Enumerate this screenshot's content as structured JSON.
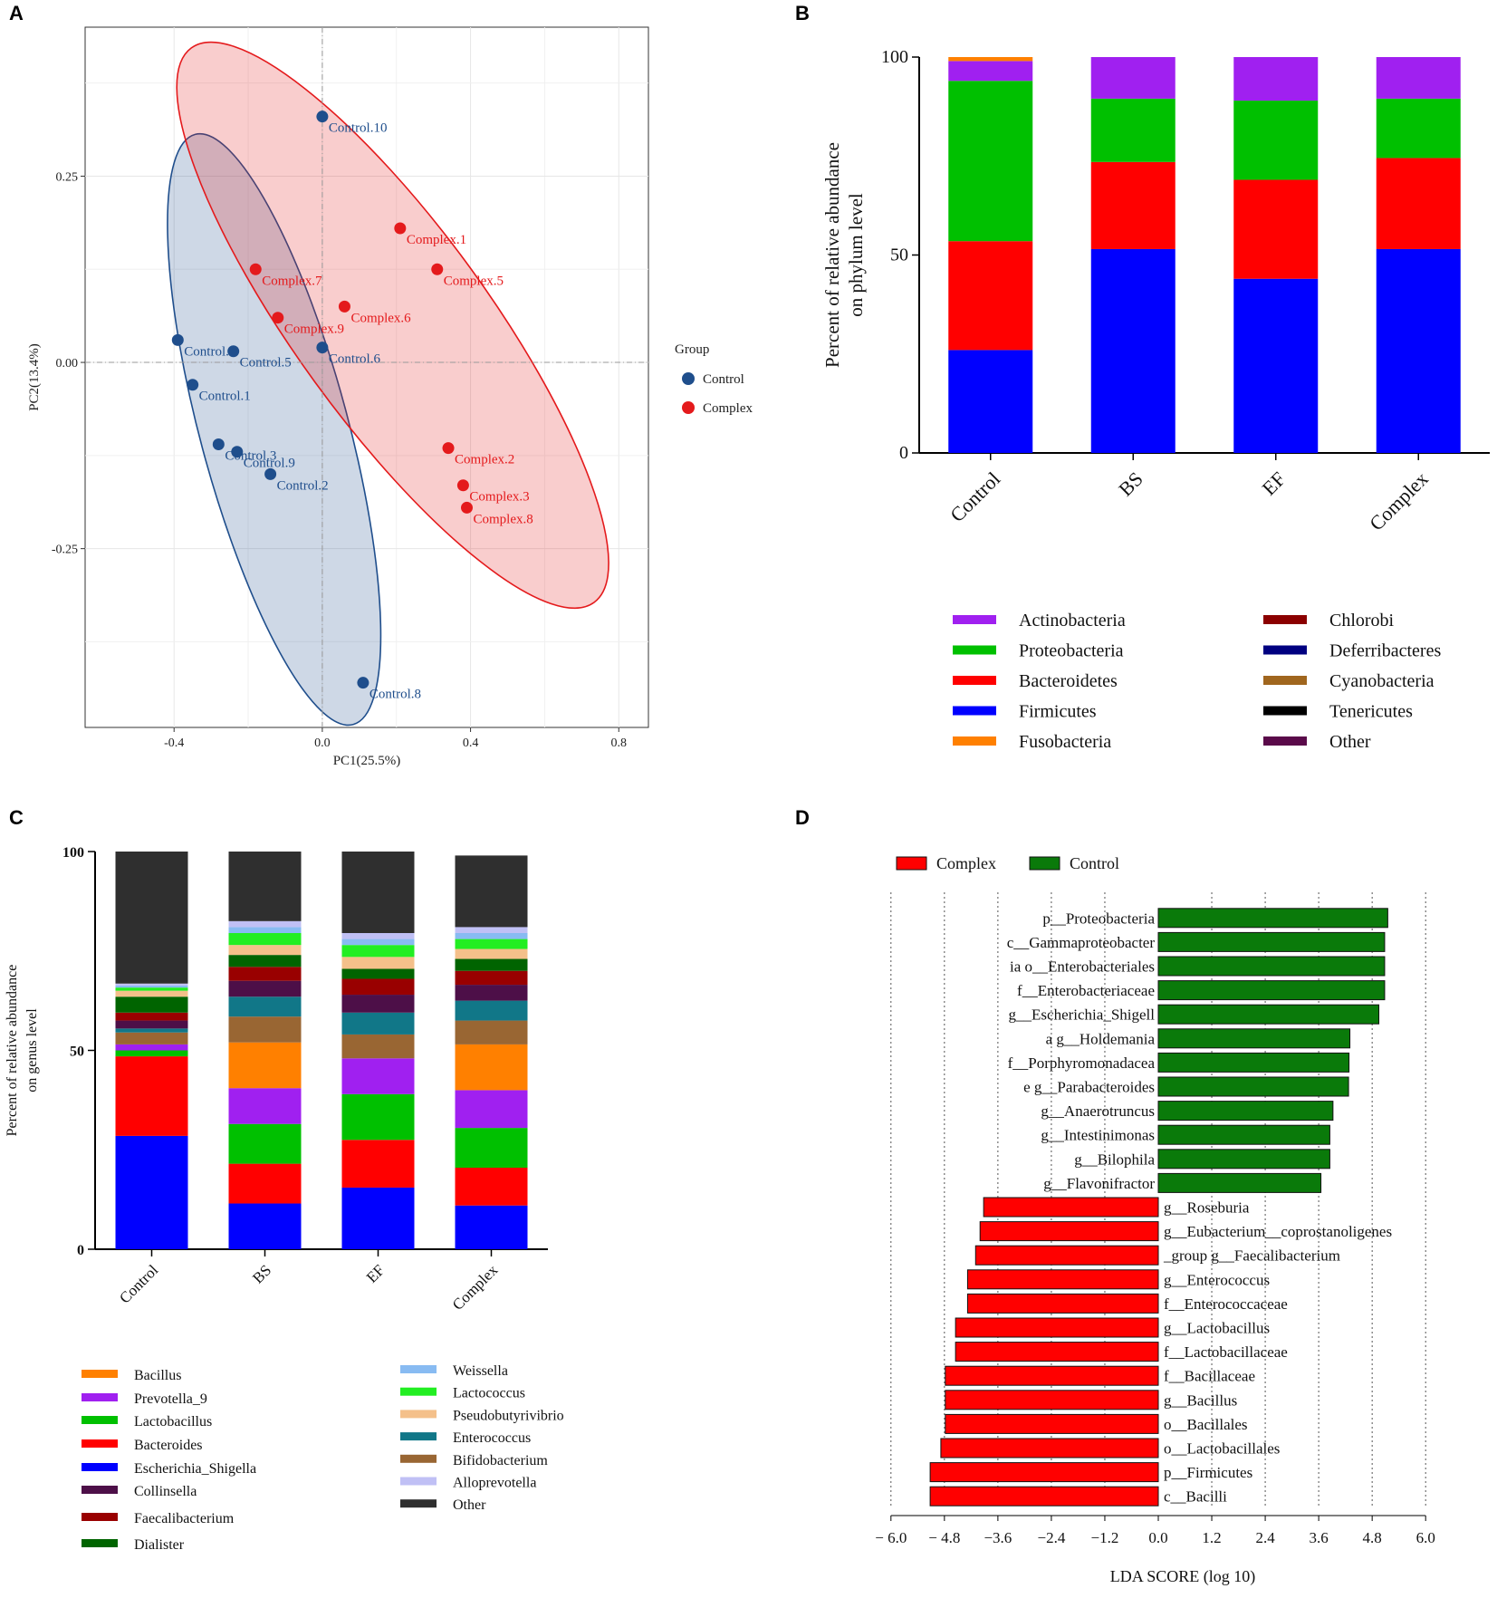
{
  "chart_data": [
    {
      "panel": "A",
      "type": "scatter",
      "xlabel": "PC1(25.5%)",
      "ylabel": "PC2(13.4%)",
      "xlim": [
        -0.64,
        0.88
      ],
      "ylim": [
        -0.49,
        0.45
      ],
      "xticks": [
        -0.4,
        0.0,
        0.4,
        0.8
      ],
      "xtick_labels": [
        "-0.4",
        "0.0",
        "0.4",
        "0.8"
      ],
      "yticks": [
        0.25,
        0.0,
        -0.25
      ],
      "ytick_labels": [
        "0.25",
        "0.00",
        "-0.25"
      ],
      "legend_title": "Group",
      "series": [
        {
          "name": "Control",
          "color": "#1f4e8c",
          "points": [
            {
              "label": "Control.10",
              "x": 0.0,
              "y": 0.33
            },
            {
              "label": "Control.7",
              "x": -0.39,
              "y": 0.03
            },
            {
              "label": "Control.5",
              "x": -0.24,
              "y": 0.015
            },
            {
              "label": "Control.6",
              "x": 0.0,
              "y": 0.02
            },
            {
              "label": "Control.1",
              "x": -0.35,
              "y": -0.03
            },
            {
              "label": "Control.3",
              "x": -0.28,
              "y": -0.11
            },
            {
              "label": "Control.9",
              "x": -0.23,
              "y": -0.12
            },
            {
              "label": "Control.2",
              "x": -0.14,
              "y": -0.15
            },
            {
              "label": "Control.8",
              "x": 0.11,
              "y": -0.43
            }
          ],
          "ellipse": {
            "cx": -0.13,
            "cy": -0.09,
            "rx": 0.2,
            "ry": 0.41,
            "angle": -15
          }
        },
        {
          "name": "Complex",
          "color": "#e41a1c",
          "points": [
            {
              "label": "Complex.1",
              "x": 0.21,
              "y": 0.18
            },
            {
              "label": "Complex.5",
              "x": 0.31,
              "y": 0.125
            },
            {
              "label": "Complex.7",
              "x": -0.18,
              "y": 0.125
            },
            {
              "label": "Complex.6",
              "x": 0.06,
              "y": 0.075
            },
            {
              "label": "Complex.9",
              "x": -0.12,
              "y": 0.06
            },
            {
              "label": "Complex.2",
              "x": 0.34,
              "y": -0.115
            },
            {
              "label": "Complex.3",
              "x": 0.38,
              "y": -0.165
            },
            {
              "label": "Complex.8",
              "x": 0.39,
              "y": -0.195
            }
          ],
          "ellipse": {
            "cx": 0.19,
            "cy": 0.05,
            "rx": 0.26,
            "ry": 0.46,
            "angle": -36
          }
        }
      ]
    },
    {
      "panel": "B",
      "type": "bar",
      "stacked": true,
      "ylabel": "Percent of relative abundance on phylum level",
      "ylim": [
        0,
        100
      ],
      "yticks": [
        0,
        50,
        100
      ],
      "categories": [
        "Control",
        "BS",
        "EF",
        "Complex"
      ],
      "series": [
        {
          "name": "Firmicutes",
          "color": "#0000ff",
          "values": [
            26,
            51.5,
            44,
            51.5
          ]
        },
        {
          "name": "Bacteroidetes",
          "color": "#ff0000",
          "values": [
            27.5,
            22,
            25,
            23
          ]
        },
        {
          "name": "Proteobacteria",
          "color": "#00c000",
          "values": [
            40.5,
            16,
            20,
            15
          ]
        },
        {
          "name": "Actinobacteria",
          "color": "#a020f0",
          "values": [
            5,
            10.5,
            11,
            10.5
          ]
        },
        {
          "name": "Fusobacteria",
          "color": "#ff8000",
          "values": [
            1,
            0,
            0,
            0
          ]
        }
      ],
      "legend": [
        {
          "name": "Actinobacteria",
          "color": "#a020f0"
        },
        {
          "name": "Proteobacteria",
          "color": "#00c000"
        },
        {
          "name": "Bacteroidetes",
          "color": "#ff0000"
        },
        {
          "name": "Firmicutes",
          "color": "#0000ff"
        },
        {
          "name": "Fusobacteria",
          "color": "#ff8000"
        },
        {
          "name": "Chlorobi",
          "color": "#8b0000"
        },
        {
          "name": "Deferribacteres",
          "color": "#000080"
        },
        {
          "name": "Cyanobacteria",
          "color": "#a0661e"
        },
        {
          "name": "Tenericutes",
          "color": "#000000"
        },
        {
          "name": "Other",
          "color": "#5a0a4a"
        }
      ]
    },
    {
      "panel": "C",
      "type": "bar",
      "stacked": true,
      "ylabel": "Percent of relative abundance on genus level",
      "ylim": [
        0,
        100
      ],
      "yticks": [
        0,
        50,
        100
      ],
      "categories": [
        "Control",
        "BS",
        "EF",
        "Complex"
      ],
      "series": [
        {
          "name": "Escherichia_Shigella",
          "color": "#0000ff",
          "values": [
            28.5,
            11.5,
            15.5,
            11
          ]
        },
        {
          "name": "Bacteroides",
          "color": "#ff0000",
          "values": [
            20,
            10,
            12,
            9.5
          ]
        },
        {
          "name": "Lactobacillus",
          "color": "#00c000",
          "values": [
            1.5,
            10,
            11.5,
            10
          ]
        },
        {
          "name": "Prevotella_9",
          "color": "#a020f0",
          "values": [
            1.5,
            9,
            9,
            9.5
          ]
        },
        {
          "name": "Bacillus",
          "color": "#ff8000",
          "values": [
            0,
            11.5,
            0,
            11.5
          ]
        },
        {
          "name": "Bifidobacterium",
          "color": "#996633",
          "values": [
            3,
            6.5,
            6,
            6
          ]
        },
        {
          "name": "Enterococcus",
          "color": "#117788",
          "values": [
            1,
            5,
            5.5,
            5
          ]
        },
        {
          "name": "Collinsella",
          "color": "#4d0f48",
          "values": [
            2,
            4,
            4.5,
            4
          ]
        },
        {
          "name": "Faecalibacterium",
          "color": "#990000",
          "values": [
            2,
            3.5,
            4,
            3.5
          ]
        },
        {
          "name": "Dialister",
          "color": "#006400",
          "values": [
            4,
            3,
            2.5,
            3
          ]
        },
        {
          "name": "Pseudobutyrivibrio",
          "color": "#f4c08a",
          "values": [
            1.5,
            2.5,
            3,
            2.5
          ]
        },
        {
          "name": "Lactococcus",
          "color": "#22ee22",
          "values": [
            0.8,
            3,
            3,
            2.5
          ]
        },
        {
          "name": "Weissella",
          "color": "#88bbf2",
          "values": [
            0.5,
            1.5,
            1.5,
            1.5
          ]
        },
        {
          "name": "Alloprevotella",
          "color": "#c0c0f5",
          "values": [
            0.5,
            1.5,
            1.5,
            1.5
          ]
        },
        {
          "name": "Other",
          "color": "#2f2f2f",
          "values": [
            33.2,
            17.5,
            20.5,
            18
          ]
        }
      ],
      "legend_left": [
        {
          "name": "Bacillus",
          "color": "#ff8000"
        },
        {
          "name": "Prevotella_9",
          "color": "#a020f0"
        },
        {
          "name": "Lactobacillus",
          "color": "#00c000"
        },
        {
          "name": "Bacteroides",
          "color": "#ff0000"
        },
        {
          "name": "Escherichia_Shigella",
          "color": "#0000ff"
        },
        {
          "name": "Collinsella",
          "color": "#4d0f48"
        },
        {
          "name": "Faecalibacterium",
          "color": "#990000"
        },
        {
          "name": "Dialister",
          "color": "#006400"
        }
      ],
      "legend_right": [
        {
          "name": "Weissella",
          "color": "#88bbf2"
        },
        {
          "name": "Lactococcus",
          "color": "#22ee22"
        },
        {
          "name": "Pseudobutyrivibrio",
          "color": "#f4c08a"
        },
        {
          "name": "Enterococcus",
          "color": "#117788"
        },
        {
          "name": "Bifidobacterium",
          "color": "#996633"
        },
        {
          "name": "Alloprevotella",
          "color": "#c0c0f5"
        },
        {
          "name": "Other",
          "color": "#2f2f2f"
        }
      ]
    },
    {
      "panel": "D",
      "type": "bar",
      "orientation": "horizontal",
      "xlabel": "LDA SCORE (log 10)",
      "xlim": [
        -6.0,
        6.0
      ],
      "xticks": [
        -6.0,
        -4.8,
        -3.6,
        -2.4,
        -1.2,
        0.0,
        1.2,
        2.4,
        3.6,
        4.8,
        6.0
      ],
      "xtick_labels": [
        "− 6.0",
        "− 4.8",
        "−3.6",
        "−2.4",
        "−1.2",
        "0.0",
        "1.2",
        "2.4",
        "3.6",
        "4.8",
        "6.0"
      ],
      "legend": [
        {
          "name": "Complex",
          "color": "#ff0000"
        },
        {
          "name": "Control",
          "color": "#0a7a0a"
        }
      ],
      "bars": [
        {
          "label": "p__Proteobacteria",
          "value": 5.15,
          "group": "Control"
        },
        {
          "label": "c__Gammaproteobacter",
          "value": 5.08,
          "group": "Control"
        },
        {
          "label": "ia o__Enterobacteriales",
          "value": 5.08,
          "group": "Control"
        },
        {
          "label": "f__Enterobacteriaceae",
          "value": 5.08,
          "group": "Control"
        },
        {
          "label": "g__Escherichia_Shigell",
          "value": 4.95,
          "group": "Control"
        },
        {
          "label": "a g__Holdemania",
          "value": 4.3,
          "group": "Control"
        },
        {
          "label": "f__Porphyromonadacea",
          "value": 4.28,
          "group": "Control"
        },
        {
          "label": "e g__Parabacteroides",
          "value": 4.27,
          "group": "Control"
        },
        {
          "label": "g__Anaerotruncus",
          "value": 3.92,
          "group": "Control"
        },
        {
          "label": "g__Intestinimonas",
          "value": 3.85,
          "group": "Control"
        },
        {
          "label": "g__Bilophila",
          "value": 3.85,
          "group": "Control"
        },
        {
          "label": "g__Flavonifractor",
          "value": 3.65,
          "group": "Control"
        },
        {
          "label": "g__Roseburia",
          "value": -3.92,
          "group": "Complex"
        },
        {
          "label": "g__Eubacterium__coprostanoligenes",
          "value": -4.0,
          "group": "Complex"
        },
        {
          "label": "_group g__Faecalibacterium",
          "value": -4.1,
          "group": "Complex"
        },
        {
          "label": "g__Enterococcus",
          "value": -4.28,
          "group": "Complex"
        },
        {
          "label": "f__Enterococcaceae",
          "value": -4.28,
          "group": "Complex"
        },
        {
          "label": "g__Lactobacillus",
          "value": -4.55,
          "group": "Complex"
        },
        {
          "label": "f__Lactobacillaceae",
          "value": -4.55,
          "group": "Complex"
        },
        {
          "label": "f__Bacillaceae",
          "value": -4.78,
          "group": "Complex"
        },
        {
          "label": "g__Bacillus",
          "value": -4.78,
          "group": "Complex"
        },
        {
          "label": "o__Bacillales",
          "value": -4.78,
          "group": "Complex"
        },
        {
          "label": "o__Lactobacillales",
          "value": -4.88,
          "group": "Complex"
        },
        {
          "label": "p__Firmicutes",
          "value": -5.12,
          "group": "Complex"
        },
        {
          "label": "c__Bacilli",
          "value": -5.12,
          "group": "Complex"
        }
      ]
    }
  ],
  "panel_letters": [
    "A",
    "B",
    "C",
    "D"
  ]
}
